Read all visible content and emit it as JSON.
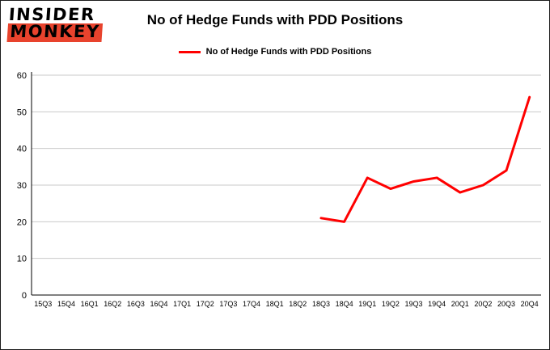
{
  "logo": {
    "line1": "INSIDER",
    "line2": "MONKEY"
  },
  "header": {
    "title": "No of Hedge Funds with PDD Positions"
  },
  "legend": {
    "label": "No of Hedge Funds with PDD Positions"
  },
  "colors": {
    "line": "#ff0000",
    "grid": "#c9c9c9",
    "axis": "#000000",
    "logo_red": "#e8432d"
  },
  "chart_data": {
    "type": "line",
    "title": "No of Hedge Funds with PDD Positions",
    "xlabel": "",
    "ylabel": "",
    "categories": [
      "15Q3",
      "15Q4",
      "16Q1",
      "16Q2",
      "16Q3",
      "16Q4",
      "17Q1",
      "17Q2",
      "17Q3",
      "17Q4",
      "18Q1",
      "18Q2",
      "18Q3",
      "18Q4",
      "19Q1",
      "19Q2",
      "19Q3",
      "19Q4",
      "20Q1",
      "20Q2",
      "20Q3",
      "20Q4"
    ],
    "series": [
      {
        "name": "No of Hedge Funds with PDD Positions",
        "color": "#ff0000",
        "values": [
          null,
          null,
          null,
          null,
          null,
          null,
          null,
          null,
          null,
          null,
          null,
          null,
          21,
          20,
          32,
          29,
          31,
          32,
          28,
          30,
          34,
          54
        ]
      }
    ],
    "ylim": [
      0,
      60
    ],
    "yticks": [
      0,
      10,
      20,
      30,
      40,
      50,
      60
    ],
    "grid": true,
    "legend_position": "top-center"
  }
}
